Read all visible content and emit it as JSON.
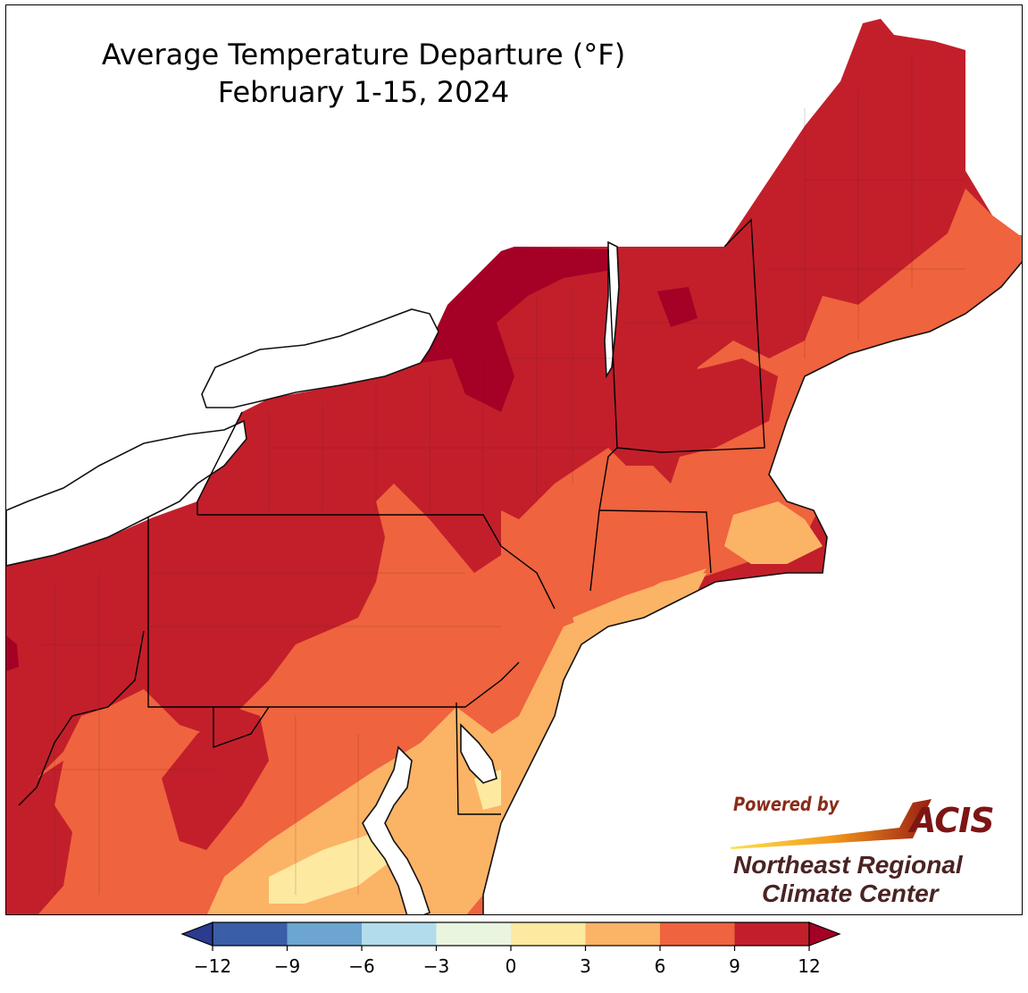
{
  "title": {
    "line1": "Average Temperature Departure (°F)",
    "line2": "February 1-15, 2024"
  },
  "credit": {
    "powered_by": "Powered by",
    "acis": "ACIS",
    "org_line1": "Northeast Regional",
    "org_line2": "Climate Center"
  },
  "legend": {
    "ticks": [
      "−12",
      "−9",
      "−6",
      "−3",
      "0",
      "3",
      "6",
      "9",
      "12"
    ],
    "bins": [
      {
        "from": -12,
        "to": -9,
        "color": "#3a5ea8"
      },
      {
        "from": -9,
        "to": -6,
        "color": "#6ba5d0"
      },
      {
        "from": -6,
        "to": -3,
        "color": "#b2dcec"
      },
      {
        "from": -3,
        "to": 0,
        "color": "#e9f5df"
      },
      {
        "from": 0,
        "to": 3,
        "color": "#fde9a0"
      },
      {
        "from": 3,
        "to": 6,
        "color": "#fbb366"
      },
      {
        "from": 6,
        "to": 9,
        "color": "#ef633e"
      },
      {
        "from": 9,
        "to": 12,
        "color": "#c21f2b"
      }
    ],
    "under_color": "#2a3b90",
    "over_color": "#a50026"
  },
  "map_colors": {
    "land_over12": "#a50026",
    "land_9_12": "#c21f2b",
    "land_6_9": "#ef633e",
    "land_3_6": "#fbb366",
    "land_0_3": "#fde9a0",
    "water": "#ffffff",
    "border": "#000000"
  },
  "map_legend_semantics": [
    "lake-erie",
    "lake-ontario",
    "atlantic-ocean",
    "chesapeake-bay",
    "delaware-bay",
    "lake-champlain",
    "long-island-sound"
  ]
}
